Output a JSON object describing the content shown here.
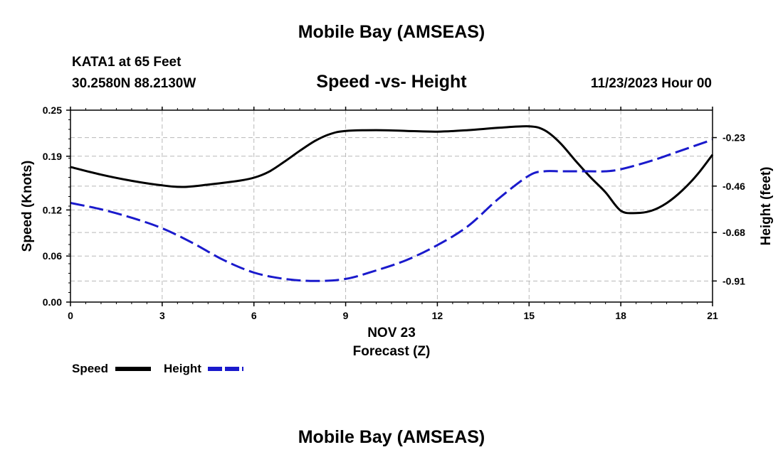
{
  "header": {
    "title": "Mobile Bay (AMSEAS)",
    "station": "KATA1 at 65 Feet",
    "location": "30.2580N  88.2130W",
    "date": "11/23/2023 Hour 00",
    "footer_title": "Mobile Bay (AMSEAS)"
  },
  "chart_data": {
    "type": "line",
    "title": "Speed -vs- Height",
    "x_date_label": "NOV 23",
    "xlabel": "Forecast (Z)",
    "ylabel_left": "Speed (Knots)",
    "ylabel_right": "Height (feet)",
    "x_ticks": [
      "0",
      "3",
      "6",
      "9",
      "12",
      "15",
      "18",
      "21"
    ],
    "y_left_ticks": [
      "0.00",
      "0.06",
      "0.12",
      "0.19",
      "0.25"
    ],
    "y_right_ticks": [
      "-0.23",
      "-0.46",
      "-0.68",
      "-0.91"
    ],
    "xlim": [
      0,
      21
    ],
    "ylim_left": [
      0,
      0.25
    ],
    "ylim_right": [
      -1.01,
      -0.1
    ],
    "grid": true,
    "legend_position": "bottom-left",
    "series": [
      {
        "name": "Speed",
        "axis": "left",
        "color": "#000000",
        "style": "solid",
        "x": [
          0,
          1,
          2,
          3,
          3.7,
          4.5,
          5.5,
          6,
          6.5,
          7,
          7.5,
          8,
          8.5,
          9,
          10,
          11,
          12,
          13,
          14,
          15,
          15.5,
          16,
          16.5,
          17,
          17.5,
          18,
          18.5,
          19,
          19.5,
          20,
          20.5,
          21
        ],
        "y": [
          0.176,
          0.166,
          0.158,
          0.152,
          0.15,
          0.153,
          0.158,
          0.162,
          0.17,
          0.183,
          0.197,
          0.21,
          0.219,
          0.223,
          0.224,
          0.223,
          0.222,
          0.224,
          0.227,
          0.229,
          0.224,
          0.208,
          0.185,
          0.163,
          0.143,
          0.119,
          0.116,
          0.119,
          0.129,
          0.145,
          0.166,
          0.192
        ]
      },
      {
        "name": "Height",
        "axis": "right",
        "color": "#1a1acc",
        "style": "dashed",
        "x": [
          0,
          1,
          2,
          3,
          4,
          5,
          6,
          7,
          8,
          9,
          10,
          11,
          12,
          13,
          14,
          15,
          15.5,
          16,
          16.5,
          17,
          17.5,
          18,
          19,
          20,
          21
        ],
        "y": [
          -0.54,
          -0.57,
          -0.61,
          -0.66,
          -0.73,
          -0.81,
          -0.87,
          -0.9,
          -0.91,
          -0.9,
          -0.86,
          -0.81,
          -0.74,
          -0.65,
          -0.52,
          -0.41,
          -0.39,
          -0.39,
          -0.39,
          -0.39,
          -0.39,
          -0.38,
          -0.34,
          -0.29,
          -0.24
        ]
      }
    ]
  }
}
